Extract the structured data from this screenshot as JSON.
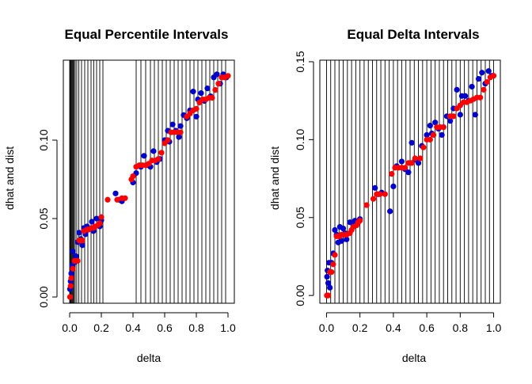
{
  "colors": {
    "dhat": "#0000cc",
    "dist": "#ff0000",
    "lines": "#000000",
    "background": "#ffffff"
  },
  "chart_data": [
    {
      "type": "scatter",
      "title": "Equal Percentile Intervals",
      "xlabel": "delta",
      "ylabel": "dhat and dist",
      "xlim": [
        -0.04,
        1.04
      ],
      "ylim": [
        -0.004,
        0.151
      ],
      "xticks": [
        0,
        0.2,
        0.4,
        0.6,
        0.8,
        1
      ],
      "xtick_labels": [
        "0.0",
        "0.2",
        "0.4",
        "0.6",
        "0.8",
        "1.0"
      ],
      "yticks": [
        0,
        0.05,
        0.1
      ],
      "ytick_labels": [
        "0.00",
        "0.05",
        "0.10"
      ],
      "grid": false,
      "vlines": [
        0.0,
        0.004,
        0.008,
        0.012,
        0.017,
        0.022,
        0.028,
        0.035,
        0.045,
        0.058,
        0.075,
        0.095,
        0.115,
        0.135,
        0.152,
        0.17,
        0.19,
        0.21,
        0.42,
        0.45,
        0.48,
        0.51,
        0.535,
        0.56,
        0.585,
        0.61,
        0.635,
        0.66,
        0.685,
        0.71,
        0.735,
        0.76,
        0.785,
        0.81,
        0.835,
        0.86,
        0.885,
        0.91,
        0.935,
        0.96,
        0.985
      ],
      "series": [
        {
          "color": "#0000cc",
          "x": [
            0.002,
            0.006,
            0.01,
            0.015,
            0.02,
            0.03,
            0.04,
            0.05,
            0.06,
            0.07,
            0.08,
            0.09,
            0.1,
            0.11,
            0.12,
            0.14,
            0.15,
            0.16,
            0.17,
            0.19,
            0.2,
            0.29,
            0.31,
            0.33,
            0.4,
            0.42,
            0.45,
            0.47,
            0.49,
            0.51,
            0.53,
            0.55,
            0.57,
            0.6,
            0.62,
            0.63,
            0.65,
            0.67,
            0.69,
            0.7,
            0.72,
            0.74,
            0.76,
            0.78,
            0.8,
            0.81,
            0.83,
            0.85,
            0.87,
            0.89,
            0.91,
            0.93,
            0.95,
            0.97,
            0.99
          ],
          "y": [
            0.005,
            0.01,
            0.015,
            0.02,
            0.029,
            0.022,
            0.026,
            0.035,
            0.041,
            0.037,
            0.033,
            0.044,
            0.04,
            0.045,
            0.043,
            0.048,
            0.042,
            0.045,
            0.05,
            0.045,
            0.049,
            0.066,
            0.062,
            0.061,
            0.073,
            0.079,
            0.083,
            0.09,
            0.084,
            0.083,
            0.093,
            0.086,
            0.088,
            0.1,
            0.106,
            0.099,
            0.11,
            0.106,
            0.102,
            0.109,
            0.116,
            0.114,
            0.119,
            0.131,
            0.115,
            0.126,
            0.13,
            0.125,
            0.133,
            0.128,
            0.14,
            0.142,
            0.136,
            0.142,
            0.14
          ]
        },
        {
          "color": "#ff0000",
          "x": [
            0.002,
            0.006,
            0.01,
            0.02,
            0.03,
            0.04,
            0.05,
            0.06,
            0.07,
            0.08,
            0.09,
            0.11,
            0.12,
            0.14,
            0.15,
            0.16,
            0.18,
            0.19,
            0.2,
            0.24,
            0.3,
            0.33,
            0.35,
            0.39,
            0.4,
            0.42,
            0.44,
            0.46,
            0.48,
            0.5,
            0.52,
            0.54,
            0.56,
            0.58,
            0.6,
            0.62,
            0.64,
            0.66,
            0.68,
            0.7,
            0.74,
            0.76,
            0.78,
            0.8,
            0.82,
            0.84,
            0.86,
            0.88,
            0.9,
            0.92,
            0.94,
            0.96,
            0.98,
            1.0
          ],
          "y": [
            0.0,
            0.007,
            0.012,
            0.018,
            0.023,
            0.023,
            0.023,
            0.036,
            0.036,
            0.036,
            0.042,
            0.043,
            0.043,
            0.044,
            0.044,
            0.045,
            0.046,
            0.047,
            0.051,
            0.062,
            0.062,
            0.063,
            0.063,
            0.075,
            0.077,
            0.083,
            0.084,
            0.084,
            0.084,
            0.085,
            0.087,
            0.087,
            0.088,
            0.092,
            0.098,
            0.1,
            0.105,
            0.105,
            0.105,
            0.105,
            0.115,
            0.117,
            0.119,
            0.12,
            0.124,
            0.126,
            0.126,
            0.127,
            0.127,
            0.132,
            0.136,
            0.14,
            0.14,
            0.141
          ]
        }
      ]
    },
    {
      "type": "scatter",
      "title": "Equal Delta Intervals",
      "xlabel": "delta",
      "ylabel": "dhat and dist",
      "xlim": [
        -0.04,
        1.04
      ],
      "ylim": [
        -0.005,
        0.151
      ],
      "xticks": [
        0,
        0.2,
        0.4,
        0.6,
        0.8,
        1
      ],
      "xtick_labels": [
        "0.0",
        "0.2",
        "0.4",
        "0.6",
        "0.8",
        "1.0"
      ],
      "yticks": [
        0,
        0.05,
        0.1,
        0.15
      ],
      "ytick_labels": [
        "0.00",
        "0.05",
        "0.10",
        "0.15"
      ],
      "grid": false,
      "vlines": [
        0.0,
        0.025,
        0.05,
        0.075,
        0.1,
        0.125,
        0.15,
        0.175,
        0.2,
        0.225,
        0.25,
        0.275,
        0.3,
        0.325,
        0.35,
        0.375,
        0.4,
        0.425,
        0.45,
        0.475,
        0.5,
        0.525,
        0.55,
        0.575,
        0.6,
        0.625,
        0.65,
        0.675,
        0.7,
        0.725,
        0.75,
        0.775,
        0.8,
        0.825,
        0.85,
        0.875,
        0.9,
        0.925,
        0.95,
        0.975,
        1.0
      ],
      "series": [
        {
          "color": "#0000cc",
          "x": [
            0.003,
            0.006,
            0.01,
            0.015,
            0.02,
            0.03,
            0.04,
            0.05,
            0.06,
            0.07,
            0.08,
            0.09,
            0.1,
            0.11,
            0.12,
            0.14,
            0.15,
            0.16,
            0.17,
            0.19,
            0.2,
            0.29,
            0.31,
            0.33,
            0.38,
            0.4,
            0.42,
            0.45,
            0.47,
            0.49,
            0.51,
            0.53,
            0.55,
            0.57,
            0.6,
            0.62,
            0.63,
            0.65,
            0.67,
            0.69,
            0.7,
            0.72,
            0.74,
            0.76,
            0.78,
            0.8,
            0.81,
            0.83,
            0.85,
            0.87,
            0.89,
            0.91,
            0.93,
            0.95,
            0.97,
            0.99
          ],
          "y": [
            0.012,
            0.016,
            0.008,
            0.021,
            0.005,
            0.021,
            0.027,
            0.042,
            0.039,
            0.034,
            0.044,
            0.035,
            0.043,
            0.04,
            0.036,
            0.047,
            0.042,
            0.045,
            0.048,
            0.047,
            0.049,
            0.069,
            0.065,
            0.066,
            0.054,
            0.07,
            0.083,
            0.086,
            0.081,
            0.079,
            0.098,
            0.087,
            0.085,
            0.096,
            0.103,
            0.109,
            0.104,
            0.111,
            0.107,
            0.103,
            0.108,
            0.115,
            0.112,
            0.12,
            0.132,
            0.116,
            0.128,
            0.128,
            0.125,
            0.134,
            0.116,
            0.139,
            0.143,
            0.136,
            0.144,
            0.141
          ]
        },
        {
          "color": "#ff0000",
          "x": [
            0.002,
            0.006,
            0.01,
            0.02,
            0.03,
            0.04,
            0.05,
            0.06,
            0.07,
            0.08,
            0.09,
            0.11,
            0.12,
            0.14,
            0.15,
            0.16,
            0.18,
            0.19,
            0.2,
            0.24,
            0.28,
            0.3,
            0.32,
            0.35,
            0.39,
            0.41,
            0.43,
            0.45,
            0.47,
            0.49,
            0.51,
            0.53,
            0.56,
            0.58,
            0.6,
            0.62,
            0.64,
            0.66,
            0.68,
            0.7,
            0.74,
            0.76,
            0.78,
            0.8,
            0.82,
            0.84,
            0.86,
            0.88,
            0.9,
            0.92,
            0.94,
            0.96,
            0.98,
            1.0
          ],
          "y": [
            0.0,
            0.0,
            0.0,
            0.015,
            0.015,
            0.02,
            0.026,
            0.038,
            0.038,
            0.038,
            0.039,
            0.039,
            0.039,
            0.04,
            0.042,
            0.044,
            0.045,
            0.047,
            0.048,
            0.058,
            0.062,
            0.065,
            0.065,
            0.065,
            0.078,
            0.082,
            0.082,
            0.082,
            0.082,
            0.085,
            0.085,
            0.088,
            0.088,
            0.095,
            0.1,
            0.1,
            0.103,
            0.108,
            0.108,
            0.108,
            0.115,
            0.115,
            0.12,
            0.122,
            0.124,
            0.124,
            0.125,
            0.126,
            0.127,
            0.127,
            0.132,
            0.137,
            0.14,
            0.141
          ]
        }
      ]
    }
  ]
}
